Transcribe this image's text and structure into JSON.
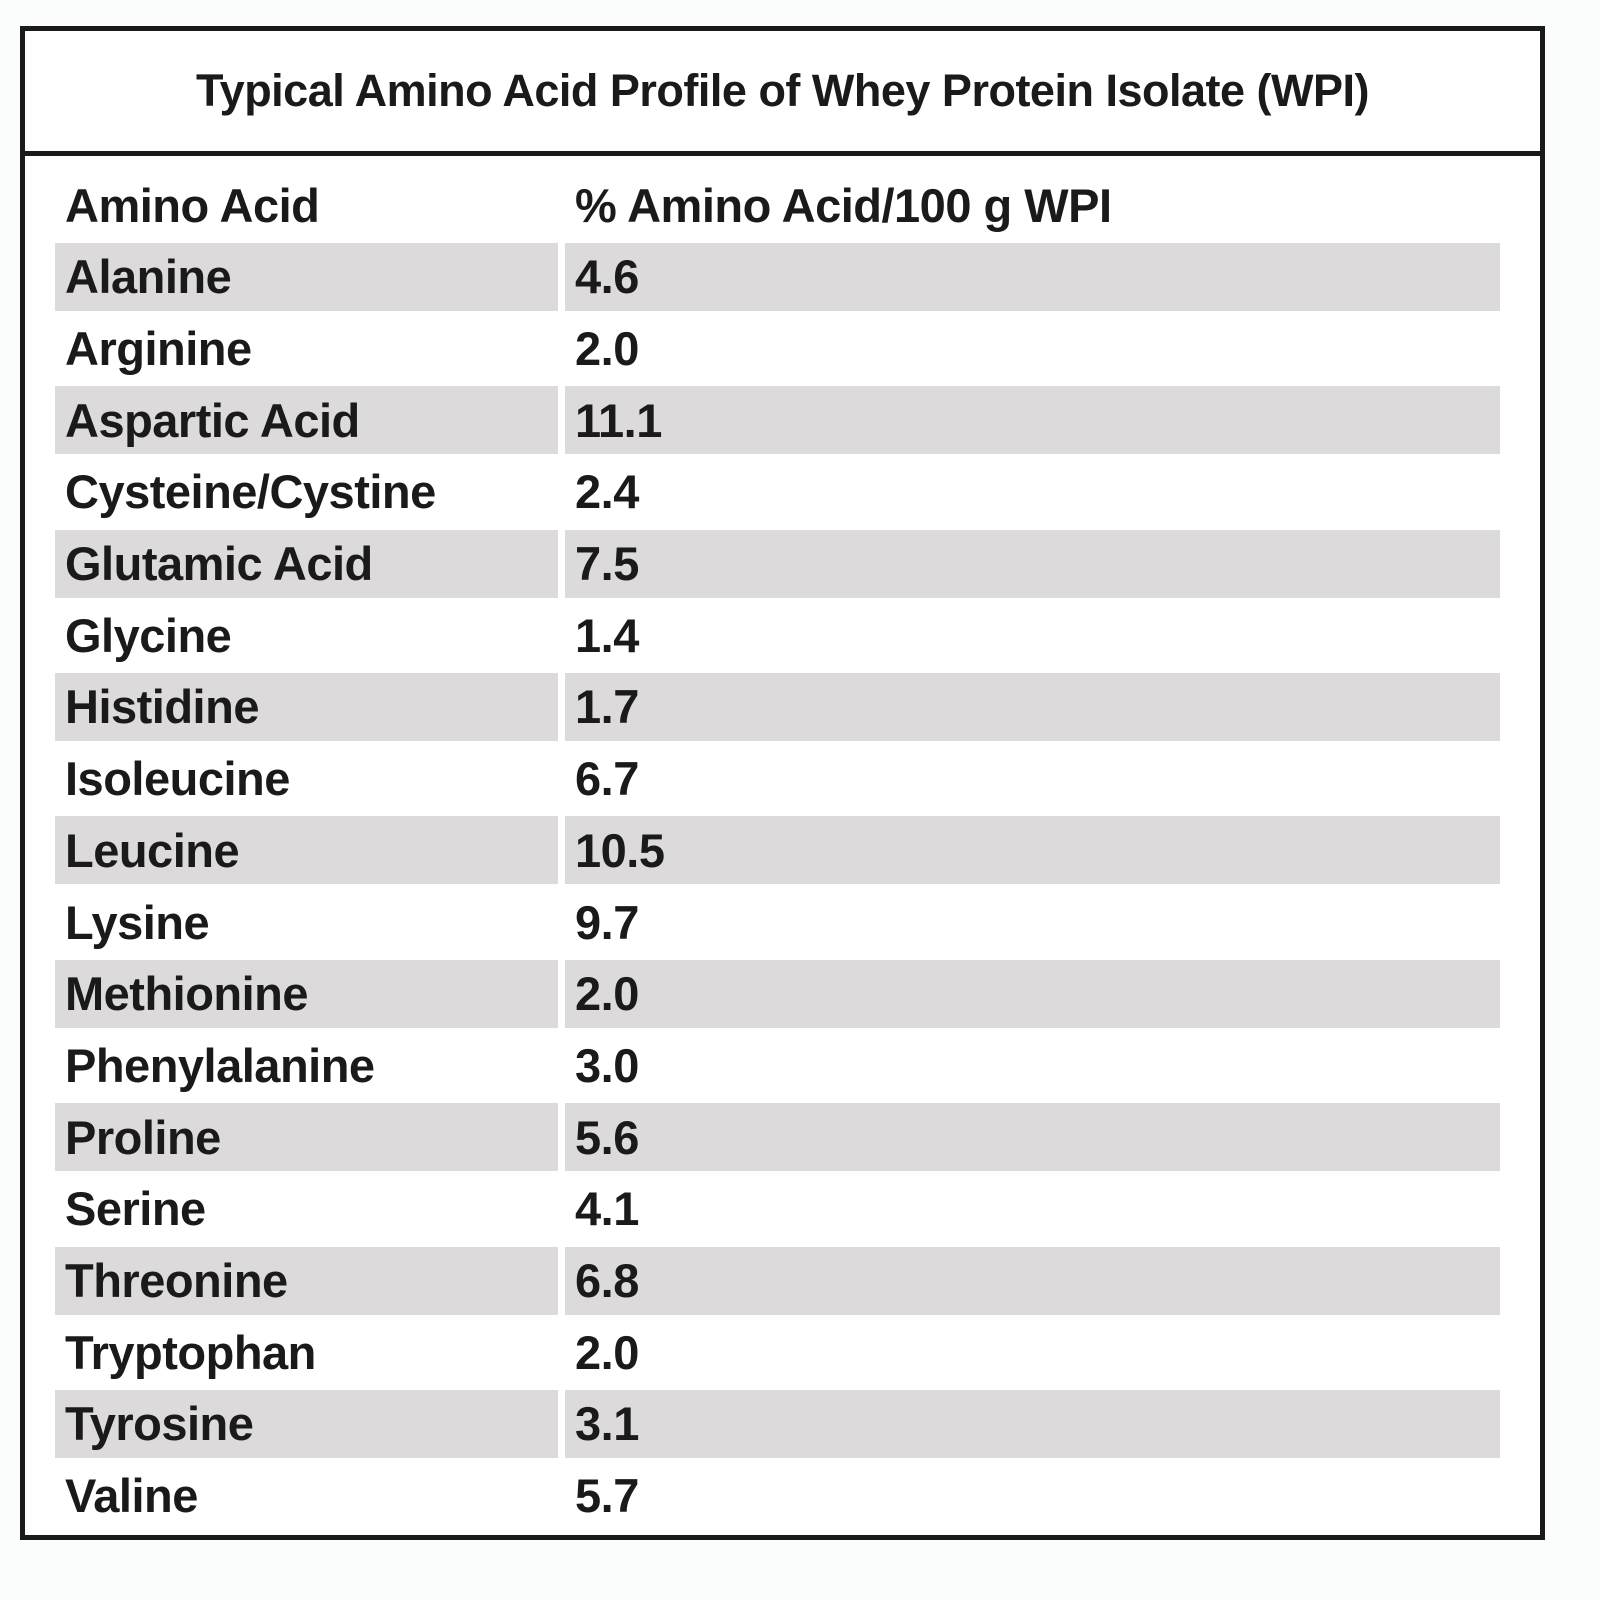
{
  "title": "Typical Amino Acid Profile of Whey Protein Isolate (WPI)",
  "table": {
    "header": [
      "Amino Acid",
      "% Amino Acid/100 g WPI"
    ],
    "rows": [
      [
        "Alanine",
        "4.6"
      ],
      [
        "Arginine",
        "2.0"
      ],
      [
        "Aspartic Acid",
        "11.1"
      ],
      [
        "Cysteine/Cystine",
        "2.4"
      ],
      [
        "Glutamic Acid",
        "7.5"
      ],
      [
        "Glycine",
        "1.4"
      ],
      [
        "Histidine",
        "1.7"
      ],
      [
        "Isoleucine",
        "6.7"
      ],
      [
        "Leucine",
        "10.5"
      ],
      [
        "Lysine",
        "9.7"
      ],
      [
        "Methionine",
        "2.0"
      ],
      [
        "Phenylalanine",
        "3.0"
      ],
      [
        "Proline",
        "5.6"
      ],
      [
        "Serine",
        "4.1"
      ],
      [
        "Threonine",
        "6.8"
      ],
      [
        "Tryptophan",
        "2.0"
      ],
      [
        "Tyrosine",
        "3.1"
      ],
      [
        "Valine",
        "5.7"
      ]
    ]
  }
}
